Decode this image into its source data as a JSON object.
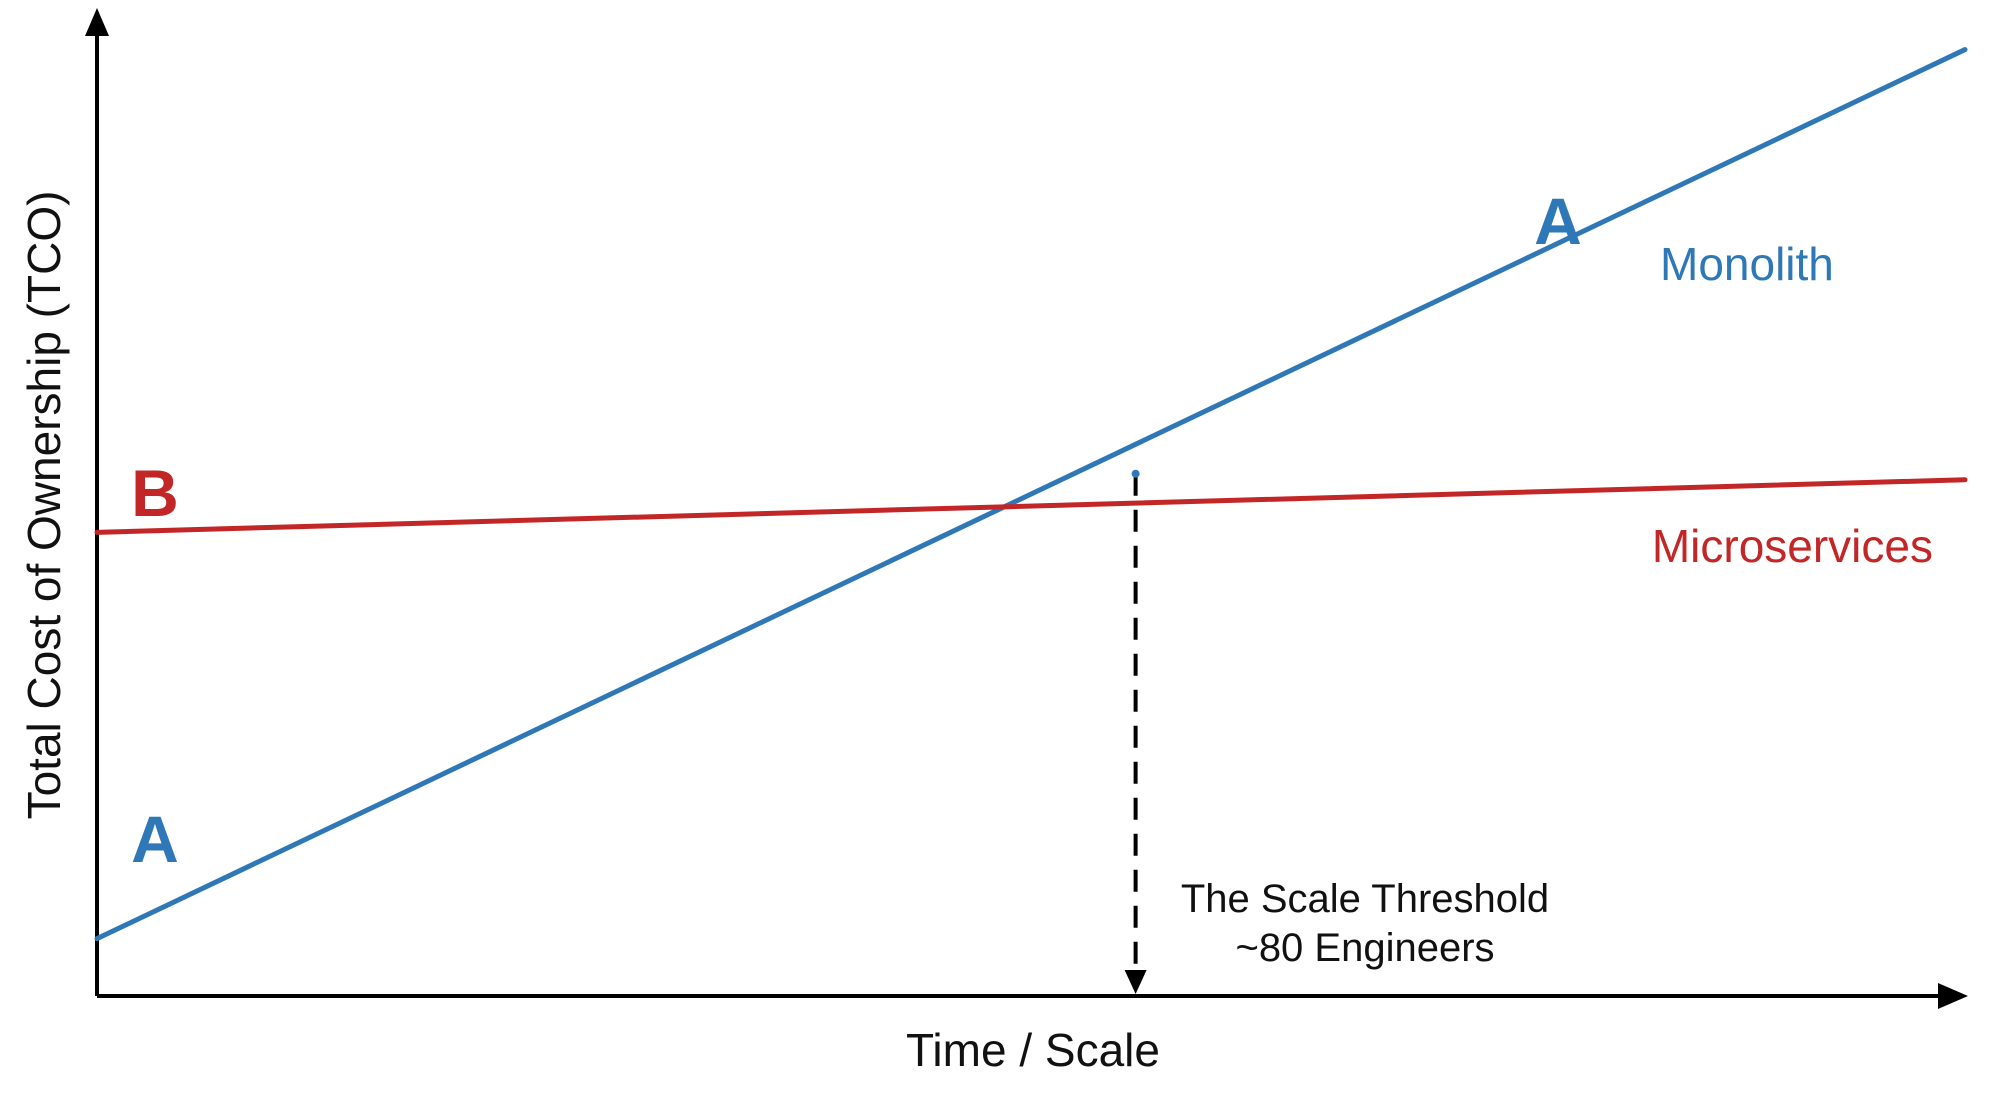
{
  "chart_data": {
    "type": "line",
    "title": "",
    "xlabel": "Time / Scale",
    "ylabel": "Total Cost of Ownership (TCO)",
    "xlim": [
      0,
      1
    ],
    "ylim": [
      0,
      1
    ],
    "grid": false,
    "series": [
      {
        "name": "Monolith",
        "color": "#2f78b7",
        "x": [
          0,
          1
        ],
        "y": [
          0.06,
          0.99
        ],
        "start_marker": "A",
        "end_marker": "A"
      },
      {
        "name": "Microservices",
        "color": "#c22626",
        "x": [
          0,
          1
        ],
        "y": [
          0.485,
          0.54
        ],
        "start_marker": "B"
      }
    ],
    "annotations": [
      {
        "kind": "threshold",
        "x": 0.556,
        "lines": [
          "The Scale Threshold",
          "~80 Engineers"
        ],
        "style": "dashed-arrow-to-x-axis"
      }
    ]
  }
}
